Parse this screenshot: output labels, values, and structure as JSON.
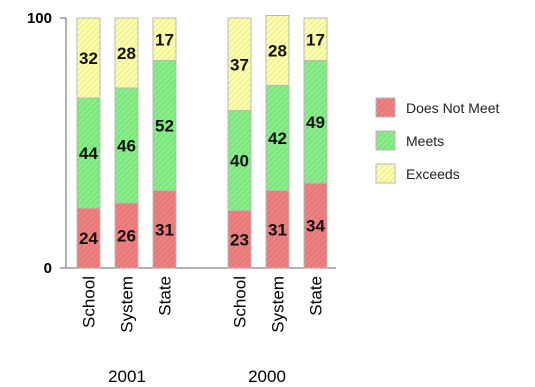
{
  "chart_data": {
    "type": "bar",
    "stacked": true,
    "ylim": [
      0,
      100
    ],
    "yticks": [
      0,
      100
    ],
    "groups": [
      {
        "label": "2001",
        "categories": [
          "School",
          "System",
          "State"
        ]
      },
      {
        "label": "2000",
        "categories": [
          "School",
          "System",
          "State"
        ]
      }
    ],
    "series": [
      {
        "name": "Does Not Meet",
        "color": "#f08080",
        "values": [
          24,
          26,
          31,
          23,
          31,
          34
        ]
      },
      {
        "name": "Meets",
        "color": "#88ee88",
        "values": [
          44,
          46,
          52,
          40,
          42,
          49
        ]
      },
      {
        "name": "Exceeds",
        "color": "#ffffaa",
        "values": [
          32,
          28,
          17,
          37,
          28,
          17
        ]
      }
    ],
    "legend_position": "right"
  }
}
